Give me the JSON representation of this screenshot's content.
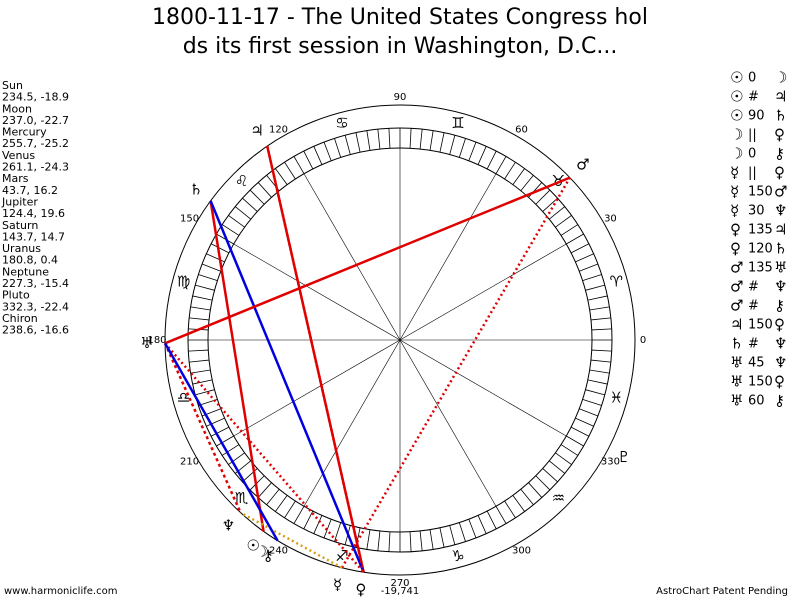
{
  "title": [
    "1800-11-17 - The United States Congress hol",
    "ds its first session in Washington, D.C..."
  ],
  "planets": [
    {
      "name": "Sun",
      "glyph": "☉",
      "lon": 234.5,
      "label": "234.5, -18.9"
    },
    {
      "name": "Moon",
      "glyph": "☽",
      "lon": 237.0,
      "label": "237.0, -22.7"
    },
    {
      "name": "Mercury",
      "glyph": "☿",
      "lon": 255.7,
      "label": "255.7, -25.2"
    },
    {
      "name": "Venus",
      "glyph": "♀",
      "lon": 261.1,
      "label": "261.1, -24.3"
    },
    {
      "name": "Mars",
      "glyph": "♂",
      "lon": 43.7,
      "label": "43.7, 16.2"
    },
    {
      "name": "Jupiter",
      "glyph": "♃",
      "lon": 124.4,
      "label": "124.4, 19.6"
    },
    {
      "name": "Saturn",
      "glyph": "♄",
      "lon": 143.7,
      "label": "143.7, 14.7"
    },
    {
      "name": "Uranus",
      "glyph": "♅",
      "lon": 180.8,
      "label": "180.8, 0.4"
    },
    {
      "name": "Neptune",
      "glyph": "♆",
      "lon": 227.3,
      "label": "227.3, -15.4"
    },
    {
      "name": "Pluto",
      "glyph": "♇",
      "lon": 332.3,
      "label": "332.3, -22.4"
    },
    {
      "name": "Chiron",
      "glyph": "⚷",
      "lon": 238.6,
      "label": "238.6, -16.6"
    }
  ],
  "aspects": [
    {
      "a": "☉",
      "sym": "0",
      "b": "☽"
    },
    {
      "a": "☉",
      "sym": "#",
      "b": "♃"
    },
    {
      "a": "☉",
      "sym": "90",
      "b": "♄"
    },
    {
      "a": "☽",
      "sym": "||",
      "b": "♀"
    },
    {
      "a": "☽",
      "sym": "0",
      "b": "⚷"
    },
    {
      "a": "☿",
      "sym": "||",
      "b": "♀"
    },
    {
      "a": "☿",
      "sym": "150",
      "b": "♂"
    },
    {
      "a": "☿",
      "sym": "30",
      "b": "♆"
    },
    {
      "a": "♀",
      "sym": "135",
      "b": "♃"
    },
    {
      "a": "♀",
      "sym": "120",
      "b": "♄"
    },
    {
      "a": "♂",
      "sym": "135",
      "b": "♅"
    },
    {
      "a": "♂",
      "sym": "#",
      "b": "♆"
    },
    {
      "a": "♂",
      "sym": "#",
      "b": "⚷"
    },
    {
      "a": "♃",
      "sym": "150",
      "b": "♀"
    },
    {
      "a": "♄",
      "sym": "#",
      "b": "♆"
    },
    {
      "a": "♅",
      "sym": "45",
      "b": "♆"
    },
    {
      "a": "♅",
      "sym": "150",
      "b": "♀"
    },
    {
      "a": "♅",
      "sym": "60",
      "b": "⚷"
    }
  ],
  "signs": [
    "♈",
    "♉",
    "♊",
    "♋",
    "♌",
    "♍",
    "♎",
    "♏",
    "♐",
    "♑",
    "♒",
    "♓"
  ],
  "degrees": [
    0,
    30,
    60,
    90,
    120,
    150,
    180,
    210,
    240,
    270,
    300,
    330
  ],
  "bottom_label": "-19,741",
  "footer_left": "www.harmoniclife.com",
  "footer_right": "AstroChart Patent Pending"
}
